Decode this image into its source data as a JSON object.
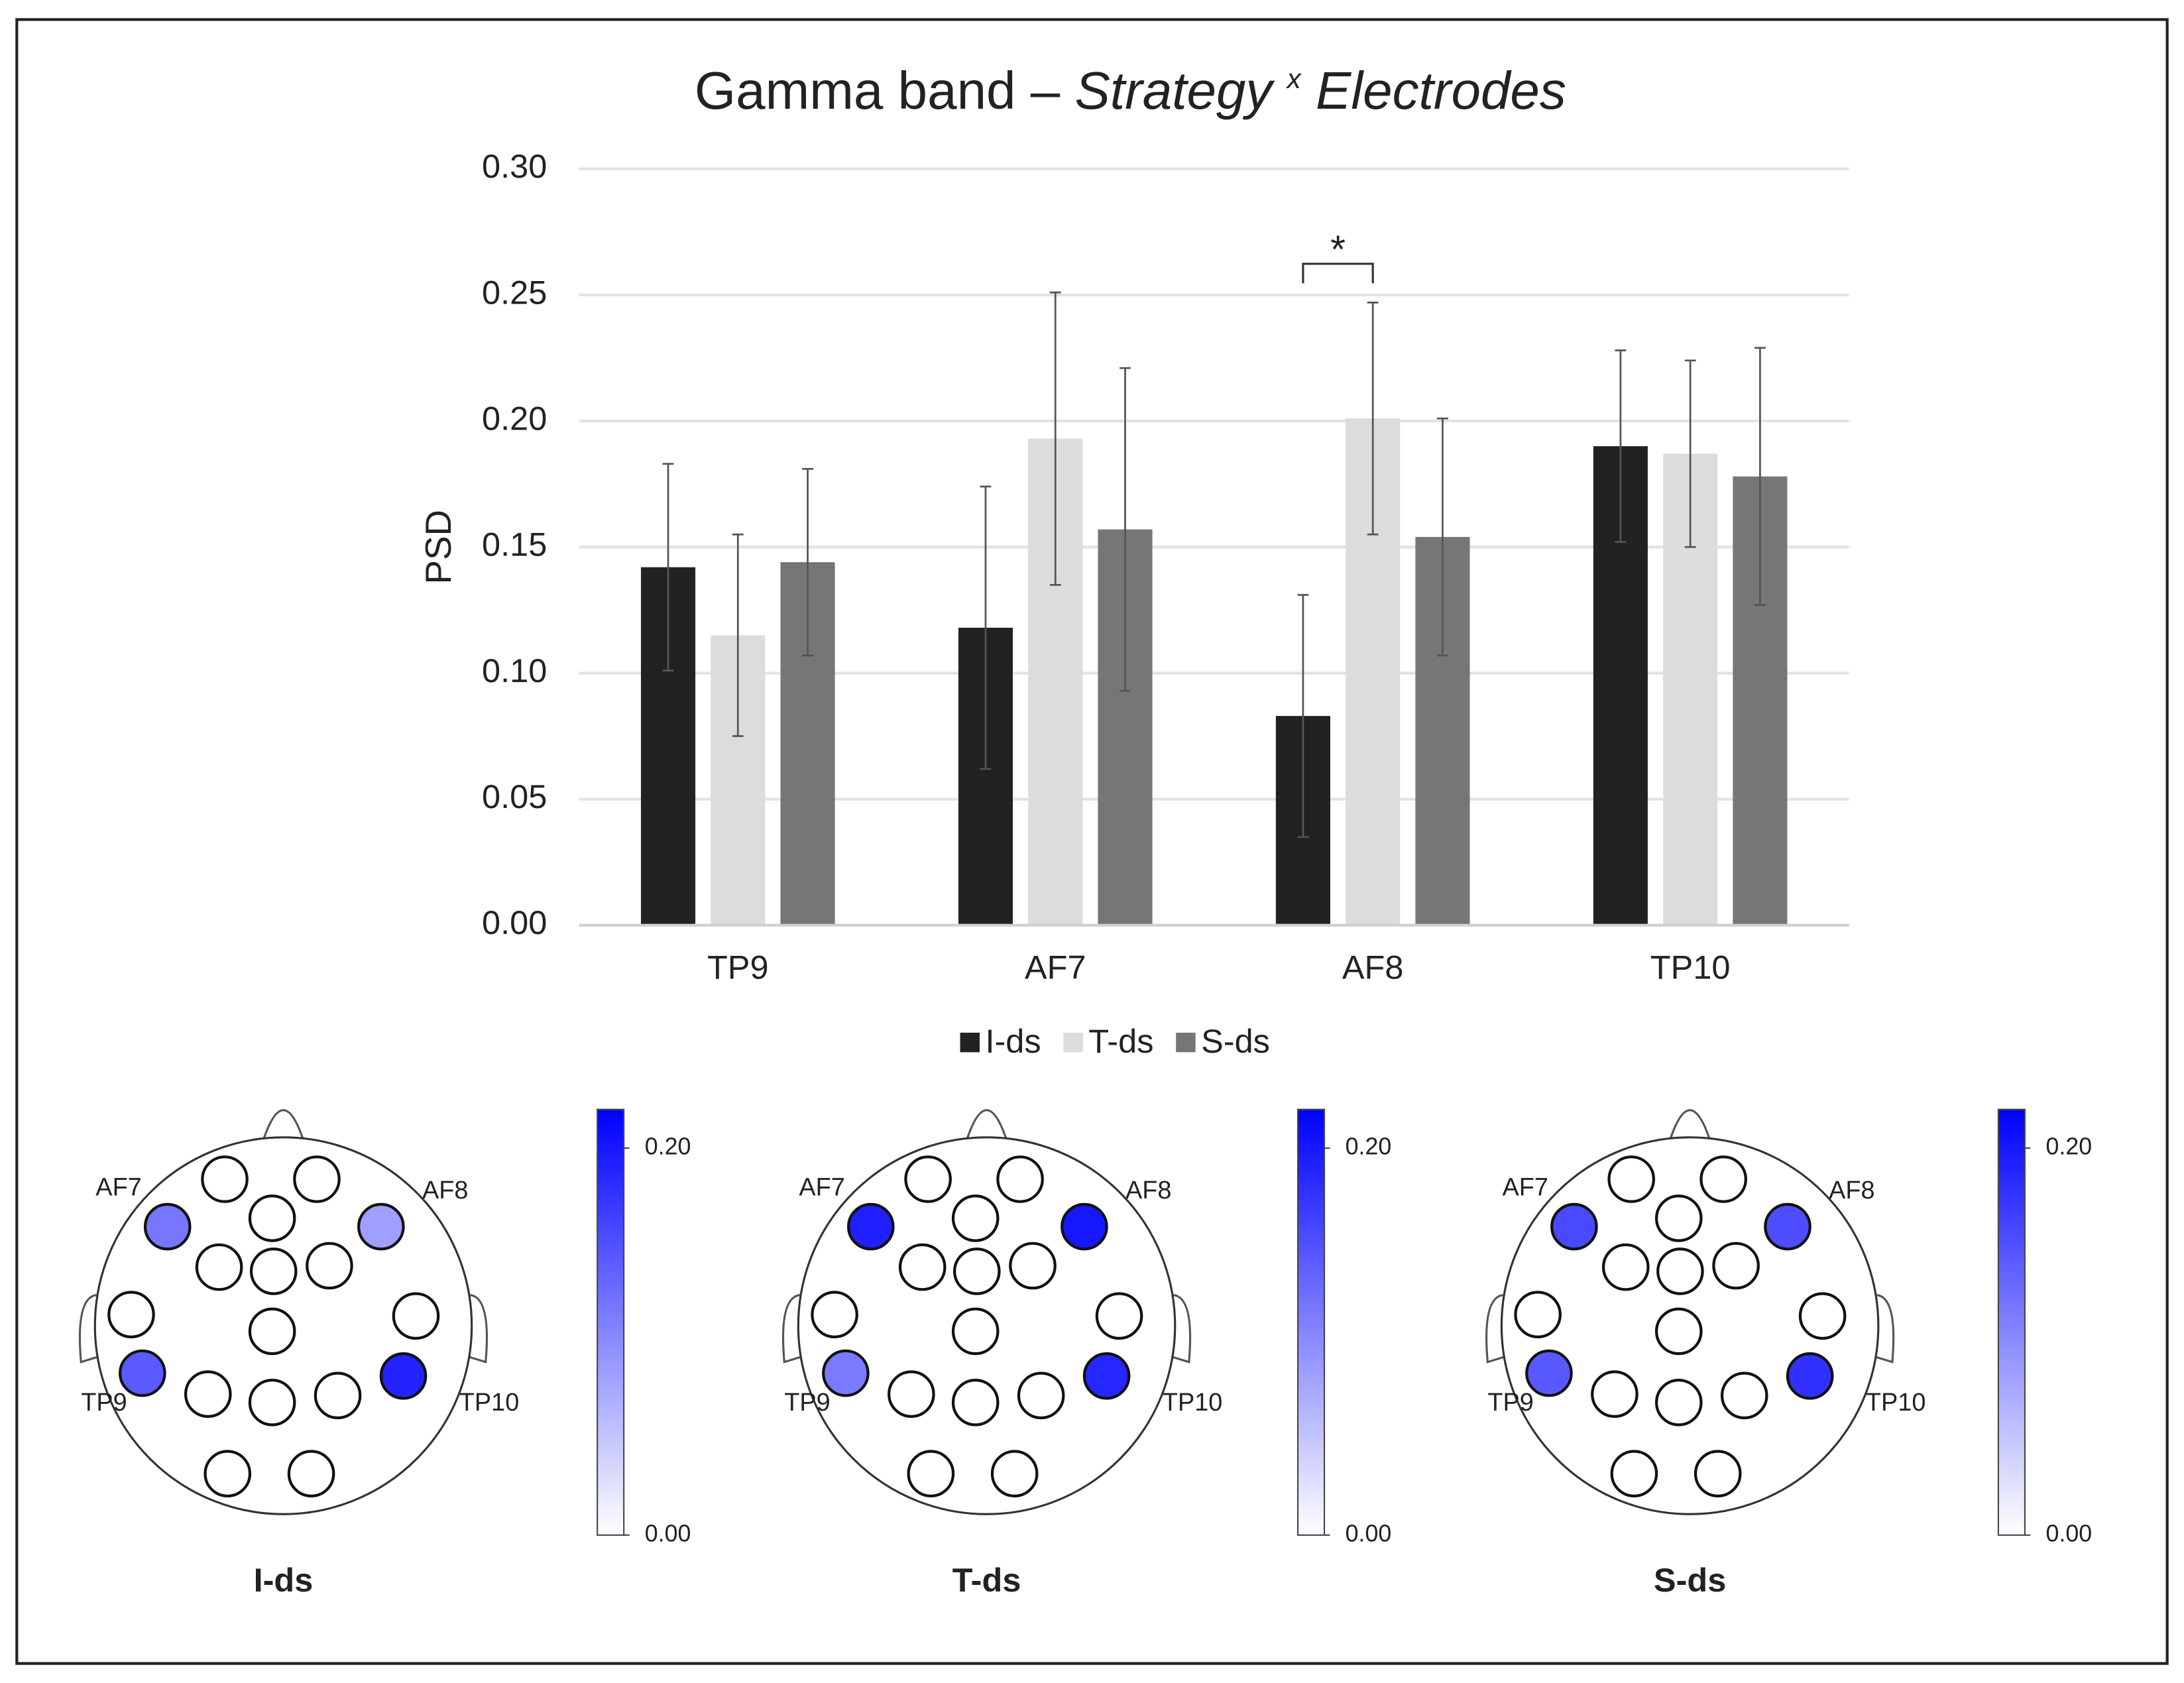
{
  "chart_data": [
    {
      "type": "bar",
      "title": [
        "Gamma band –",
        "Strategy",
        "x",
        "Electrodes"
      ],
      "y_label": "PSD",
      "categories": [
        "TP9",
        "AF7",
        "AF8",
        "TP10"
      ],
      "series": [
        {
          "name": "I-ds",
          "color": "#222222",
          "values": [
            0.142,
            0.118,
            0.083,
            0.19
          ],
          "errors": [
            0.041,
            0.056,
            0.048,
            0.038
          ]
        },
        {
          "name": "T-ds",
          "color": "#dcdcdc",
          "values": [
            0.115,
            0.193,
            0.201,
            0.187
          ],
          "errors": [
            0.04,
            0.058,
            0.046,
            0.037
          ]
        },
        {
          "name": "S-ds",
          "color": "#767676",
          "values": [
            0.144,
            0.157,
            0.154,
            0.178
          ],
          "errors": [
            0.037,
            0.064,
            0.047,
            0.051
          ]
        }
      ],
      "ylim": [
        0,
        0.3
      ],
      "yticks": [
        {
          "value": 0,
          "label": "0.00"
        },
        {
          "value": 0.05,
          "label": "0.05"
        },
        {
          "value": 0.1,
          "label": "0.10"
        },
        {
          "value": 0.15,
          "label": "0.15"
        },
        {
          "value": 0.2,
          "label": "0.20"
        },
        {
          "value": 0.25,
          "label": "0.25"
        },
        {
          "value": 0.3,
          "label": "0.30"
        }
      ],
      "grid": true,
      "legend": "bottom",
      "annotation": {
        "text": "*",
        "category": "AF8",
        "series": [
          "I-ds",
          "T-ds"
        ]
      }
    },
    {
      "type": "topomap",
      "electrodes": [
        "AF7",
        "AF8",
        "TP9",
        "TP10"
      ],
      "maps": [
        {
          "name": "I-ds",
          "values": [
            0.118,
            0.083,
            0.142,
            0.19
          ]
        },
        {
          "name": "T-ds",
          "values": [
            0.193,
            0.201,
            0.115,
            0.187
          ]
        },
        {
          "name": "S-ds",
          "values": [
            0.157,
            0.154,
            0.144,
            0.178
          ]
        }
      ],
      "clim": [
        0,
        0.22
      ],
      "cticks": [
        {
          "value": 0,
          "label": "0.00"
        },
        {
          "value": 0.2,
          "label": "0.20"
        }
      ],
      "cmap": [
        "#ffffff",
        "#0000ff"
      ]
    }
  ]
}
